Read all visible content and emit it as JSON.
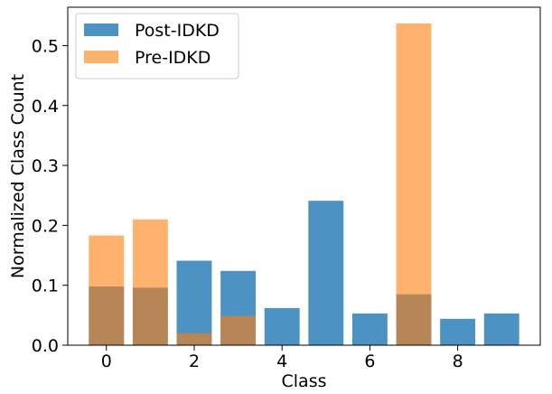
{
  "chart_data": {
    "type": "bar",
    "categories": [
      0,
      1,
      2,
      3,
      4,
      5,
      6,
      7,
      8,
      9
    ],
    "series": [
      {
        "name": "Post-IDKD",
        "color": "#1f77b4",
        "opacity": 0.8,
        "values": [
          0.098,
          0.096,
          0.141,
          0.124,
          0.062,
          0.241,
          0.053,
          0.085,
          0.044,
          0.053
        ]
      },
      {
        "name": "Pre-IDKD",
        "color": "#ff7f0e",
        "opacity": 0.6,
        "values": [
          0.183,
          0.21,
          0.02,
          0.049,
          0.0,
          0.0,
          0.0,
          0.537,
          0.0,
          0.0
        ]
      }
    ],
    "xlabel": "Class",
    "ylabel": "Normalized Class Count",
    "xticks": [
      0,
      2,
      4,
      6,
      8
    ],
    "yticks": [
      0.0,
      0.1,
      0.2,
      0.3,
      0.4,
      0.5
    ],
    "ytick_labels": [
      "0.0",
      "0.1",
      "0.2",
      "0.3",
      "0.4",
      "0.5"
    ],
    "ylim": [
      0,
      0.564
    ],
    "xlim": [
      -0.88,
      9.88
    ],
    "legend_position": "top-left",
    "grid": false
  }
}
